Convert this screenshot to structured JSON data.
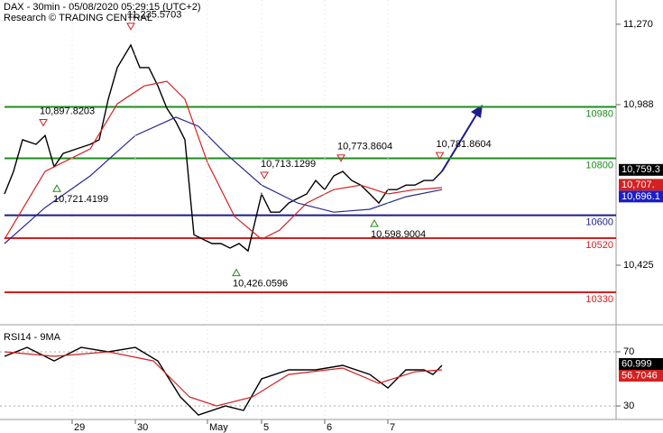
{
  "chart_data": [
    {
      "type": "line",
      "title": "DAX - 30min - 05/08/2020 05:29:15 (UTC+2)",
      "subtitle": "Research © TRADING CENTRAL",
      "xlim": [
        0,
        136.6
      ],
      "ylim": [
        10232,
        11355
      ],
      "yticks": [
        {
          "value": 11270,
          "label": "11,270"
        },
        {
          "value": 10988,
          "label": "10,988"
        },
        {
          "value": 10425,
          "label": "10,425"
        }
      ],
      "series": [
        {
          "color": "#000000",
          "x": [
            1,
            3,
            5,
            8,
            10,
            12,
            14,
            17,
            20,
            22,
            24,
            26,
            29,
            31,
            33,
            35,
            37,
            39,
            41,
            43,
            45,
            47,
            49,
            51,
            53,
            55,
            58,
            60,
            62,
            64,
            66,
            68,
            70,
            72,
            74,
            76,
            78,
            80,
            82,
            84,
            86,
            88,
            90,
            92,
            94,
            96,
            98
          ],
          "values": [
            10675,
            10754,
            10865,
            10849,
            10880,
            10770,
            10817,
            10833,
            10849,
            10865,
            11007,
            11118,
            11197,
            11118,
            11118,
            11054,
            10975,
            10928,
            10865,
            10532,
            10516,
            10501,
            10501,
            10485,
            10501,
            10475,
            10675,
            10611,
            10611,
            10643,
            10659,
            10675,
            10722,
            10690,
            10738,
            10754,
            10722,
            10706,
            10675,
            10643,
            10690,
            10690,
            10706,
            10706,
            10722,
            10722,
            10754
          ]
        },
        {
          "color": "#d42020",
          "x": [
            1,
            10,
            20,
            26,
            32,
            37,
            41,
            46,
            52,
            58,
            62,
            68,
            74,
            80,
            86,
            92,
            98
          ],
          "values": [
            10516,
            10754,
            10833,
            10991,
            11054,
            11070,
            11007,
            10785,
            10596,
            10516,
            10548,
            10643,
            10690,
            10706,
            10675,
            10690,
            10697
          ]
        },
        {
          "color": "#2a2a8c",
          "x": [
            1,
            10,
            20,
            30,
            39,
            44,
            50,
            58,
            66,
            74,
            82,
            90,
            98
          ],
          "values": [
            10501,
            10627,
            10738,
            10880,
            10944,
            10912,
            10817,
            10706,
            10643,
            10611,
            10621,
            10665,
            10690
          ]
        }
      ],
      "levels": [
        {
          "value": 10980,
          "color": "#1e8c1e"
        },
        {
          "value": 10800,
          "color": "#1e8c1e"
        },
        {
          "value": 10600,
          "color": "#1c1c8c"
        },
        {
          "value": 10520,
          "color": "#d42020"
        },
        {
          "value": 10330,
          "color": "#d42020"
        }
      ],
      "annotations": [
        {
          "x": 9.6,
          "value": 10897.8203,
          "label": "10,897.8203"
        },
        {
          "x": 29,
          "value": 11235.5703,
          "label": "11,235.5703"
        },
        {
          "x": 12.6,
          "value": 10721.4199,
          "label": "10,721.4199"
        },
        {
          "x": 58.6,
          "value": 10713.1299,
          "label": "10,713.1299"
        },
        {
          "x": 75.6,
          "value": 10773.8604,
          "label": "10,773.8604"
        },
        {
          "x": 97.5,
          "value": 10781.8604,
          "label": "10,781.8604"
        },
        {
          "x": 83,
          "value": 10598.9004,
          "label": "10,598.9004"
        },
        {
          "x": 52.4,
          "value": 10426.0596,
          "label": "10,426.0596"
        }
      ],
      "price_tags": [
        {
          "value": 10759.3,
          "label": "10,759.3",
          "color": "#000000"
        },
        {
          "value": 10707,
          "label": "10,707.",
          "color": "#d42020"
        },
        {
          "value": 10696.1,
          "label": "10,696.1",
          "color": "#1c1cc8"
        }
      ]
    },
    {
      "type": "line",
      "title": "RSI14 - 9MA",
      "xlim": [
        0,
        136.6
      ],
      "ylim": [
        20,
        86.67
      ],
      "yticks": [
        70,
        30
      ],
      "xticks": [
        {
          "value": 16,
          "label": "29"
        },
        {
          "value": 30,
          "label": "30"
        },
        {
          "value": 46,
          "label": "May"
        },
        {
          "value": 58,
          "label": "5"
        },
        {
          "value": 72,
          "label": "6"
        },
        {
          "value": 86,
          "label": "7"
        }
      ],
      "series": [
        {
          "color": "#000000",
          "x": [
            1,
            6,
            12,
            18,
            24,
            30,
            35,
            40,
            44,
            50,
            54,
            58,
            64,
            70,
            76,
            82,
            86,
            90,
            94,
            96,
            98
          ],
          "values": [
            66.7,
            73.3,
            63.3,
            73.3,
            70,
            73.3,
            63.3,
            36.7,
            23.3,
            30,
            26.7,
            50,
            56.7,
            56.7,
            60,
            53.3,
            43.3,
            56.7,
            56.7,
            53.3,
            60
          ]
        },
        {
          "color": "#d42020",
          "x": [
            1,
            12,
            24,
            34,
            42,
            48,
            56,
            64,
            76,
            84,
            92,
            98
          ],
          "values": [
            70,
            66.7,
            70,
            63.3,
            36.7,
            30,
            36.7,
            53.3,
            58,
            46.7,
            55.3,
            56.7
          ]
        }
      ],
      "value_tags": [
        {
          "value": 60.999,
          "label": "60.999",
          "color": "#000000"
        },
        {
          "value": 56.7046,
          "label": "56.7046",
          "color": "#d42020"
        }
      ]
    }
  ]
}
